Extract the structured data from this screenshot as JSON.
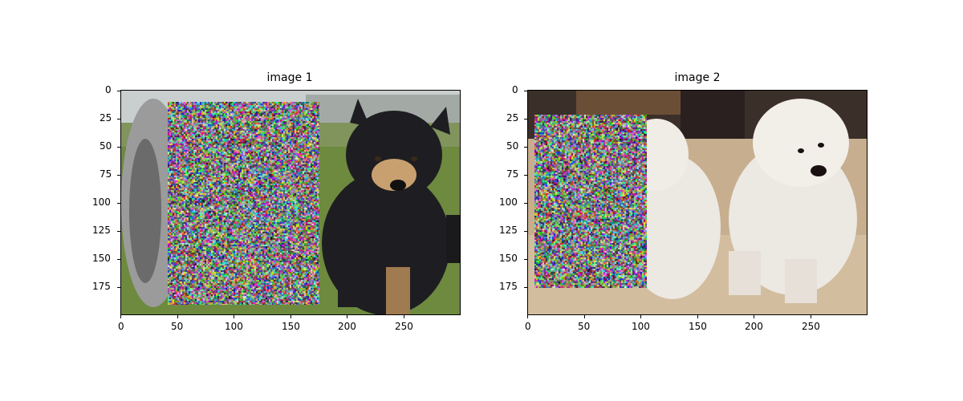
{
  "figure": {
    "panels": [
      {
        "title": "image 1",
        "image_width": 300,
        "image_height": 200,
        "x_ticks": [
          "0",
          "50",
          "100",
          "150",
          "200",
          "250"
        ],
        "y_ticks": [
          "0",
          "25",
          "50",
          "75",
          "100",
          "125",
          "150",
          "175"
        ],
        "noise_patch": {
          "x_start": 41,
          "x_end": 175,
          "y_start": 10,
          "y_end": 190
        },
        "scene": "black-and-tan dog sitting on grass, fluffy tail at left",
        "colors": {
          "grass": "#6d8a3e",
          "dog": "#1e1e22",
          "sky": "#c9cfcf"
        }
      },
      {
        "title": "image 2",
        "image_width": 300,
        "image_height": 200,
        "x_ticks": [
          "0",
          "50",
          "100",
          "150",
          "200",
          "250"
        ],
        "y_ticks": [
          "0",
          "25",
          "50",
          "75",
          "100",
          "125",
          "150",
          "175"
        ],
        "noise_patch": {
          "x_start": 6,
          "x_end": 105,
          "y_start": 21,
          "y_end": 175
        },
        "scene": "two white fluffy dogs sitting on tan floor",
        "colors": {
          "floor": "#c7ae8f",
          "dog": "#ece8e2",
          "background": "#3b2f2a"
        }
      }
    ]
  }
}
